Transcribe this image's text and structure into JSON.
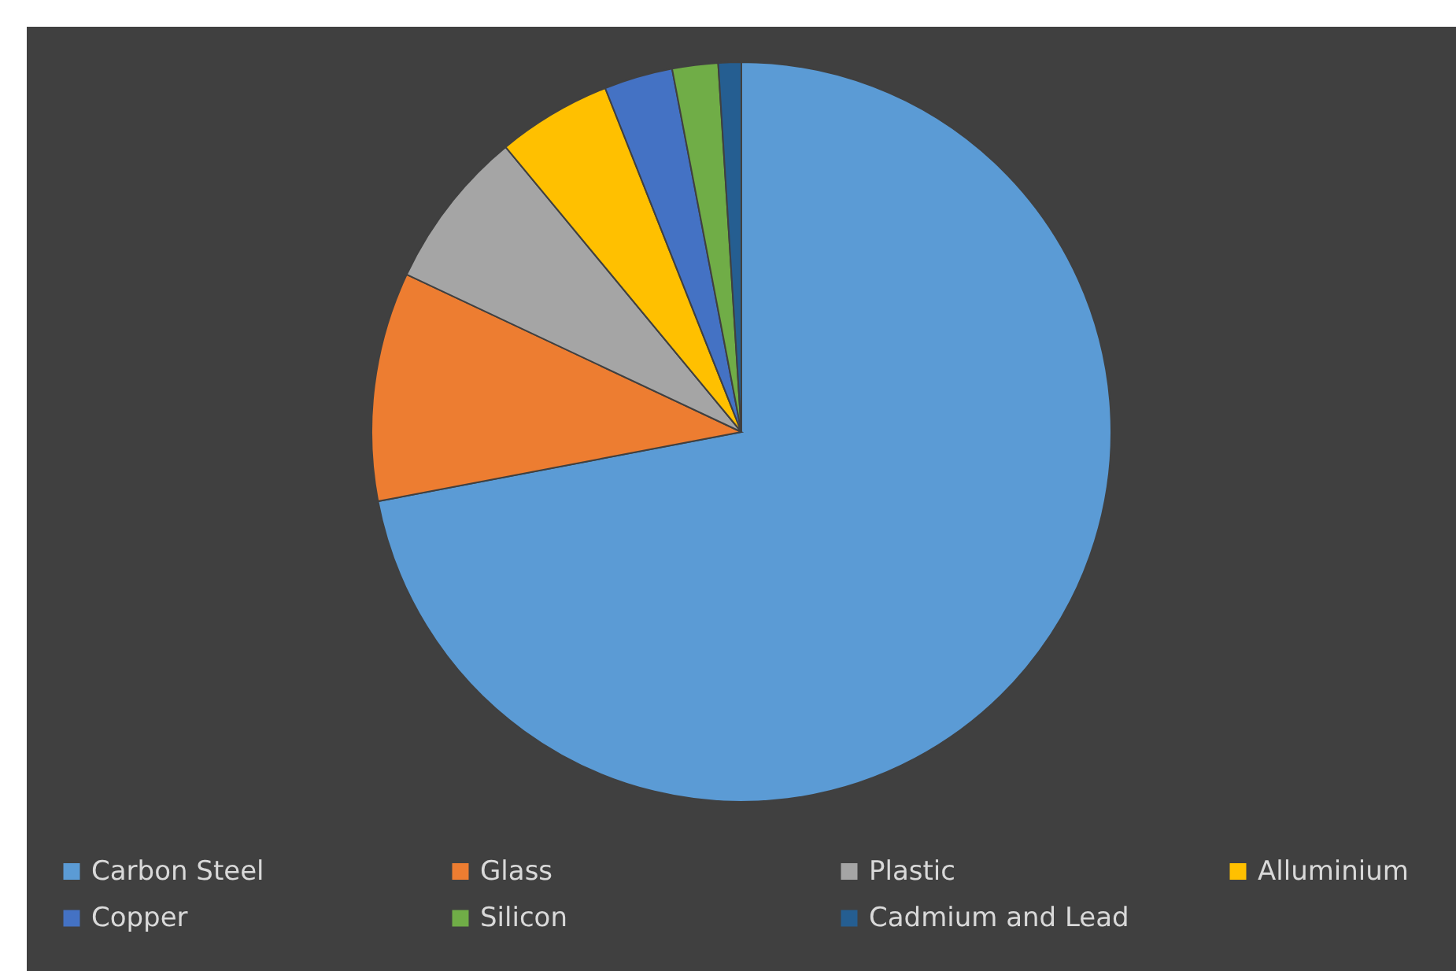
{
  "chart_data": {
    "type": "pie",
    "categories": [
      "Carbon Steel",
      "Glass",
      "Plastic",
      "Alluminium",
      "Copper",
      "Silicon",
      "Cadmium and Lead"
    ],
    "values": [
      72,
      10,
      7,
      5,
      3,
      2,
      1
    ],
    "colors": [
      "#5b9bd5",
      "#ed7d31",
      "#a5a5a5",
      "#ffc000",
      "#4472c4",
      "#70ad47",
      "#255e91"
    ],
    "legend": "bottom"
  }
}
